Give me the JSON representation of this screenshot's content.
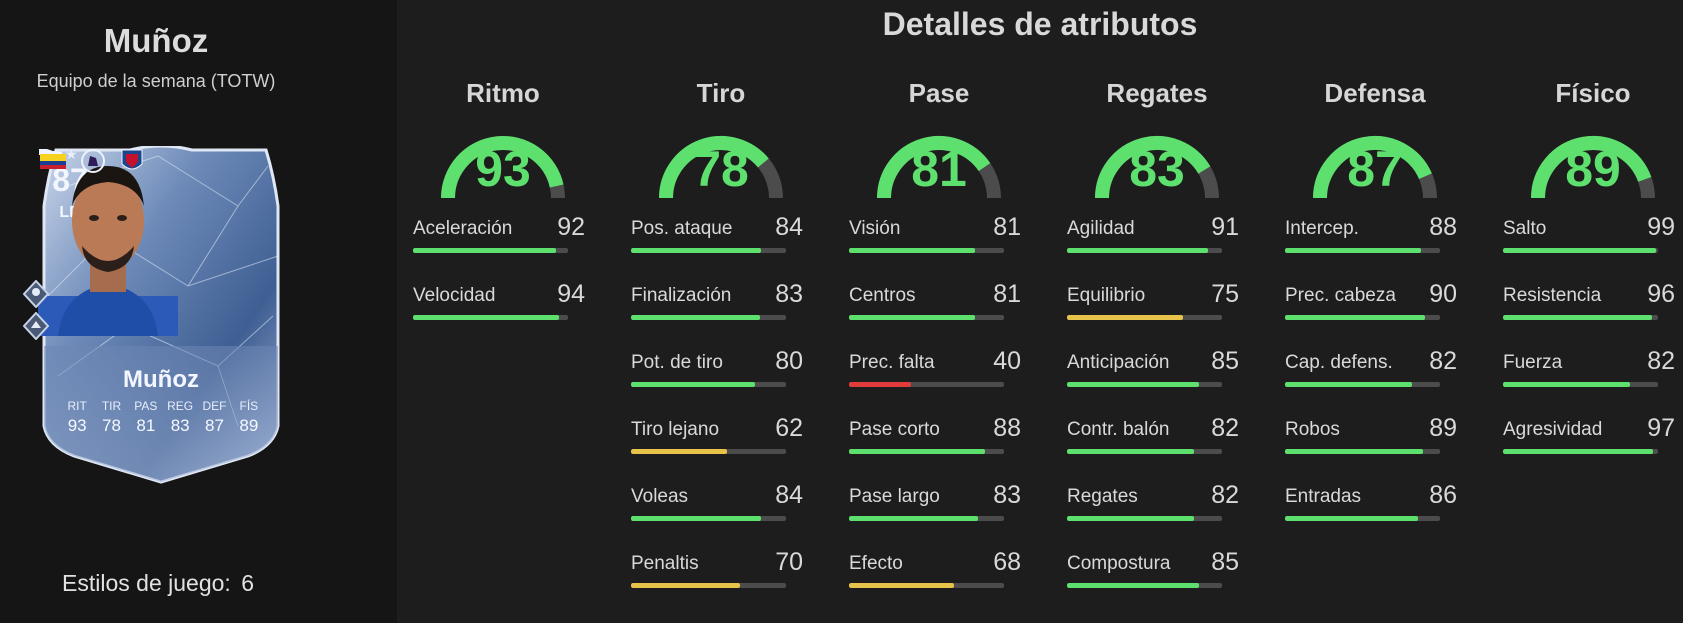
{
  "player": {
    "name": "Muñoz",
    "subtitle": "Equipo de la semana (TOTW)"
  },
  "card": {
    "rating": "87",
    "position": "LD",
    "name": "Muñoz",
    "stats": [
      {
        "label": "RIT",
        "value": "93"
      },
      {
        "label": "TIR",
        "value": "78"
      },
      {
        "label": "PAS",
        "value": "81"
      },
      {
        "label": "REG",
        "value": "83"
      },
      {
        "label": "DEF",
        "value": "87"
      },
      {
        "label": "FÍS",
        "value": "89"
      }
    ]
  },
  "playstyles": {
    "label": "Estilos de juego:",
    "value": "6"
  },
  "title": "Detalles de atributos",
  "colors": {
    "green": "#5ee06f",
    "yellow": "#e8c34a",
    "red": "#e23b3b",
    "track": "#4b4c4b"
  },
  "categories": [
    {
      "name": "Ritmo",
      "value": 93,
      "attrs": [
        {
          "label": "Aceleración",
          "value": 92
        },
        {
          "label": "Velocidad",
          "value": 94
        }
      ]
    },
    {
      "name": "Tiro",
      "value": 78,
      "attrs": [
        {
          "label": "Pos. ataque",
          "value": 84
        },
        {
          "label": "Finalización",
          "value": 83
        },
        {
          "label": "Pot. de tiro",
          "value": 80
        },
        {
          "label": "Tiro lejano",
          "value": 62
        },
        {
          "label": "Voleas",
          "value": 84
        },
        {
          "label": "Penaltis",
          "value": 70
        }
      ]
    },
    {
      "name": "Pase",
      "value": 81,
      "attrs": [
        {
          "label": "Visión",
          "value": 81
        },
        {
          "label": "Centros",
          "value": 81
        },
        {
          "label": "Prec. falta",
          "value": 40
        },
        {
          "label": "Pase corto",
          "value": 88
        },
        {
          "label": "Pase largo",
          "value": 83
        },
        {
          "label": "Efecto",
          "value": 68
        }
      ]
    },
    {
      "name": "Regates",
      "value": 83,
      "attrs": [
        {
          "label": "Agilidad",
          "value": 91
        },
        {
          "label": "Equilibrio",
          "value": 75
        },
        {
          "label": "Anticipación",
          "value": 85
        },
        {
          "label": "Contr. balón",
          "value": 82
        },
        {
          "label": "Regates",
          "value": 82
        },
        {
          "label": "Compostura",
          "value": 85
        }
      ]
    },
    {
      "name": "Defensa",
      "value": 87,
      "attrs": [
        {
          "label": "Intercep.",
          "value": 88
        },
        {
          "label": "Prec. cabeza",
          "value": 90
        },
        {
          "label": "Cap. defens.",
          "value": 82
        },
        {
          "label": "Robos",
          "value": 89
        },
        {
          "label": "Entradas",
          "value": 86
        }
      ]
    },
    {
      "name": "Físico",
      "value": 89,
      "attrs": [
        {
          "label": "Salto",
          "value": 99
        },
        {
          "label": "Resistencia",
          "value": 96
        },
        {
          "label": "Fuerza",
          "value": 82
        },
        {
          "label": "Agresividad",
          "value": 97
        }
      ]
    }
  ]
}
